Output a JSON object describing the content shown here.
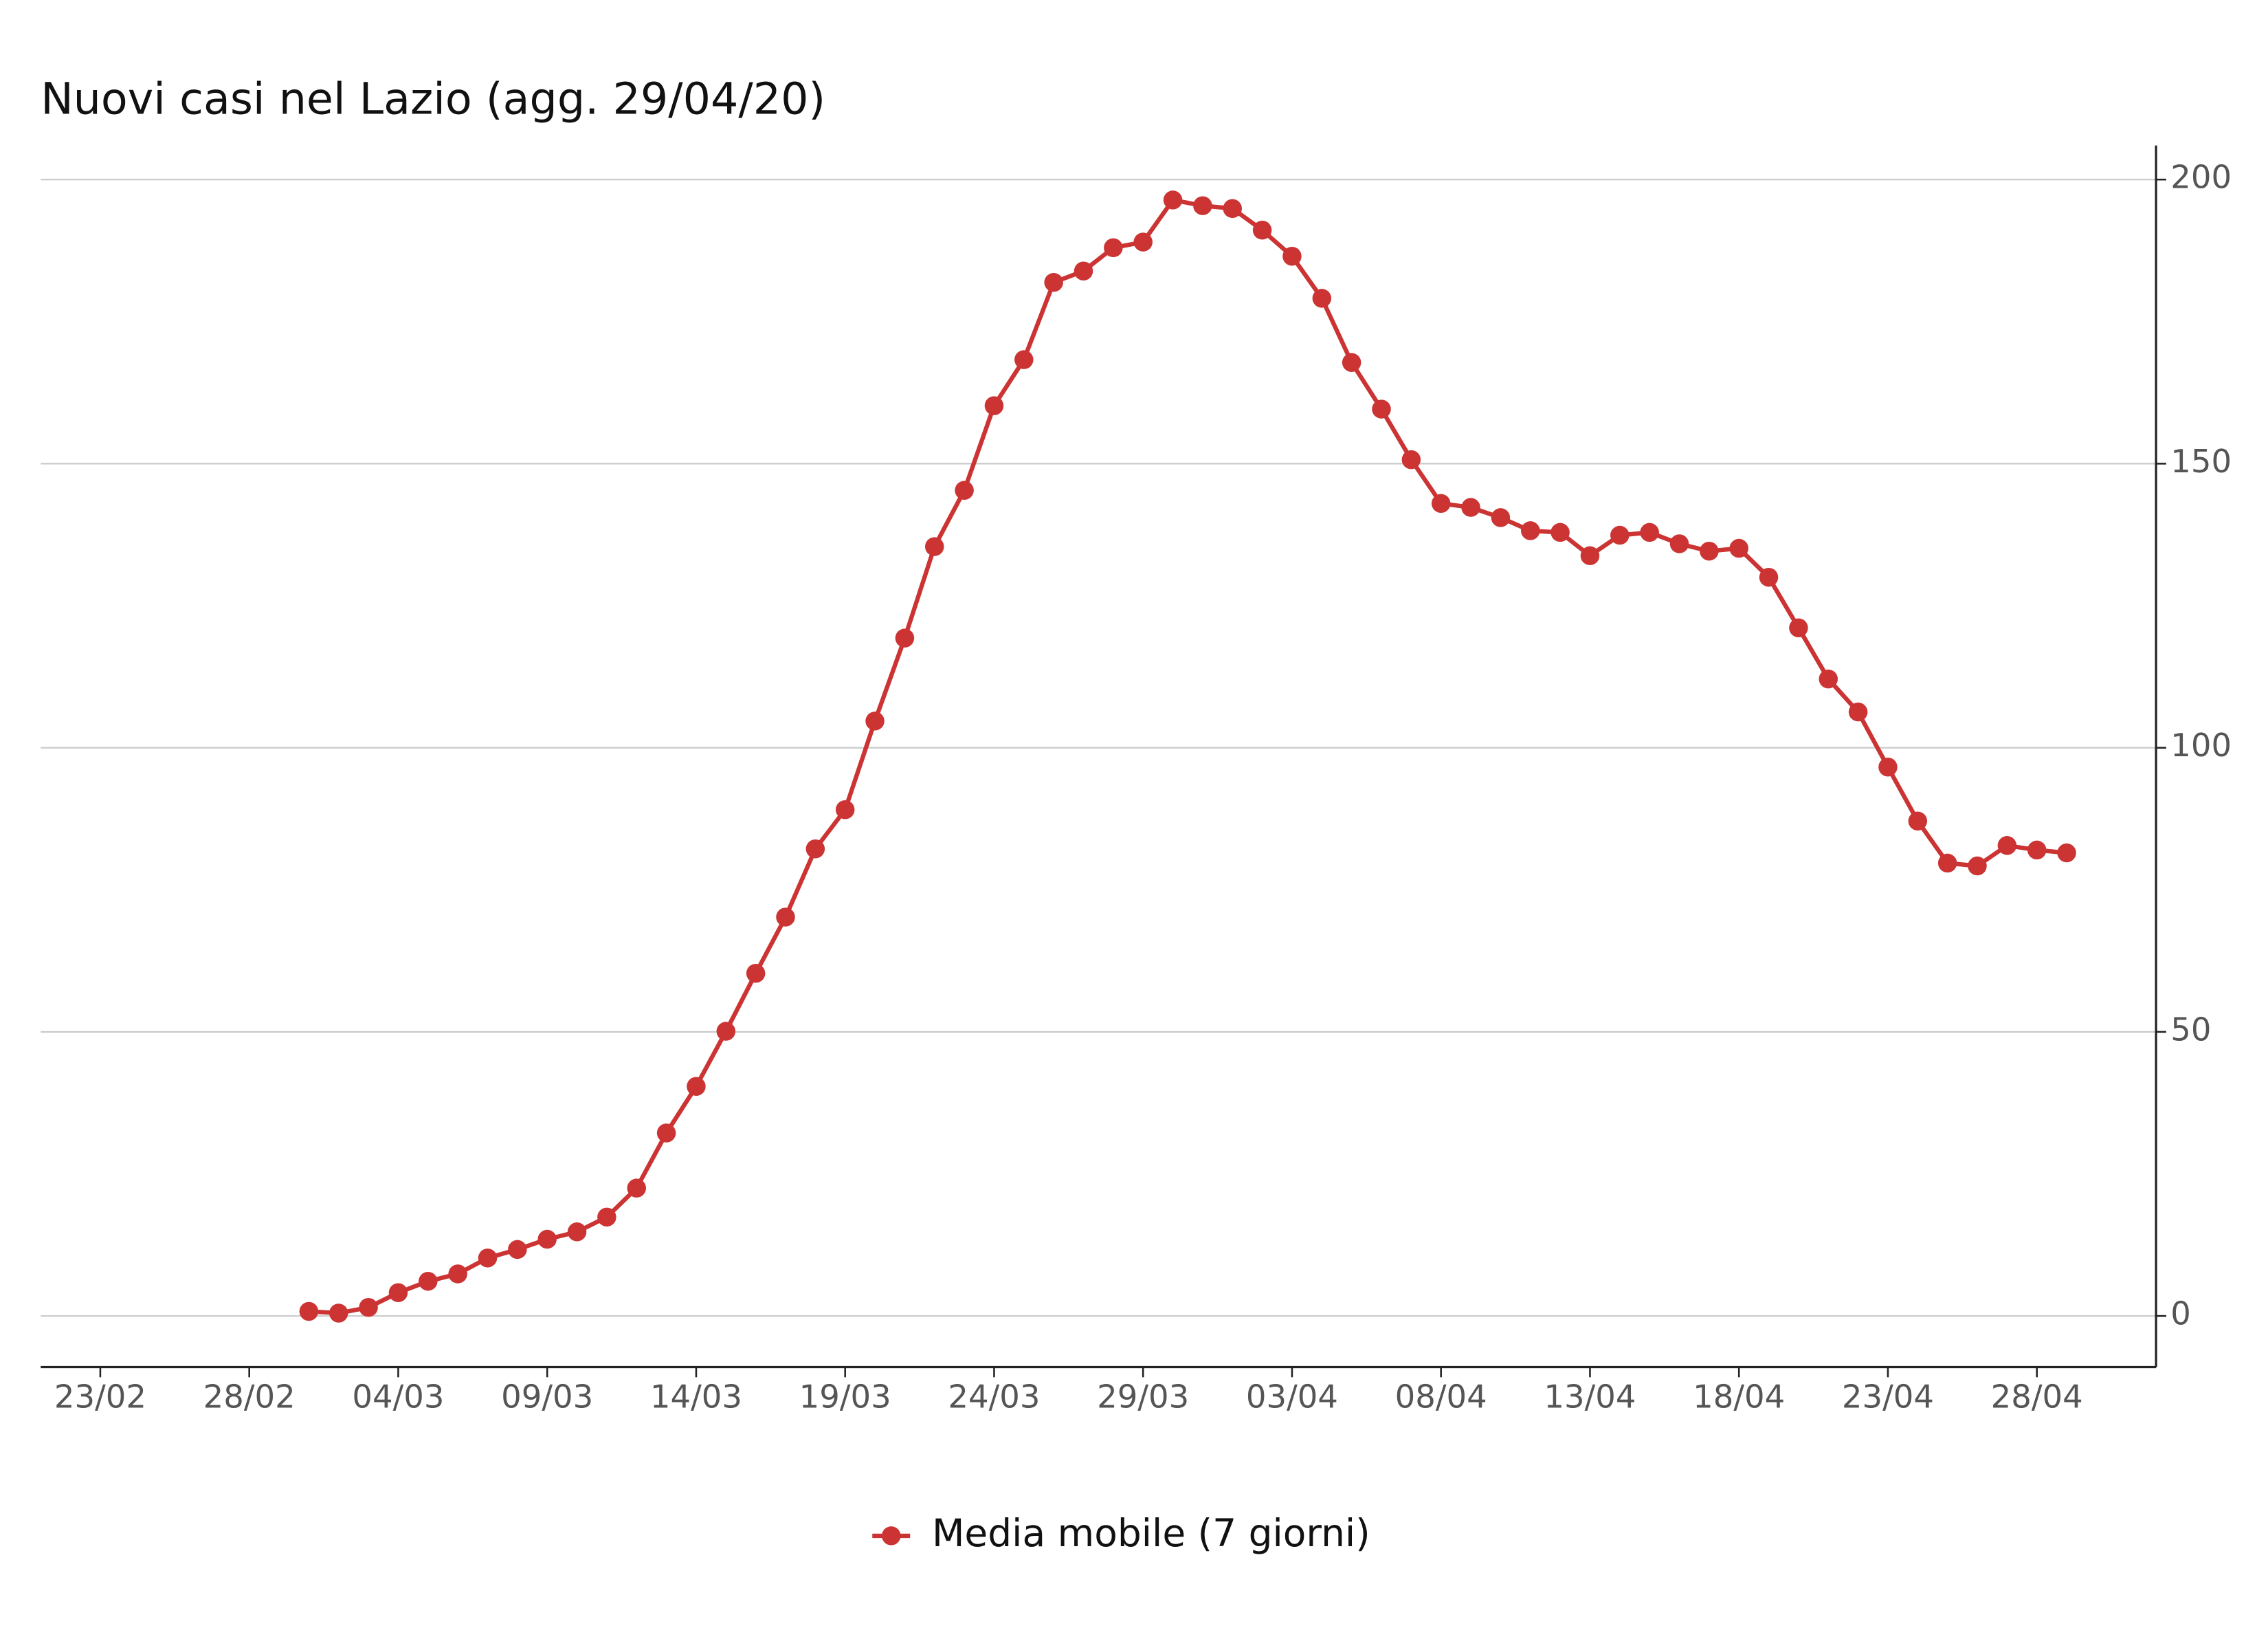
{
  "chart_data": {
    "type": "line",
    "title": "Nuovi casi nel Lazio (agg. 29/04/20)",
    "x": [
      "01/03",
      "02/03",
      "03/03",
      "04/03",
      "05/03",
      "06/03",
      "07/03",
      "08/03",
      "09/03",
      "10/03",
      "11/03",
      "12/03",
      "13/03",
      "14/03",
      "15/03",
      "16/03",
      "17/03",
      "18/03",
      "19/03",
      "20/03",
      "21/03",
      "22/03",
      "23/03",
      "24/03",
      "25/03",
      "26/03",
      "27/03",
      "28/03",
      "29/03",
      "30/03",
      "31/03",
      "01/04",
      "02/04",
      "03/04",
      "04/04",
      "05/04",
      "06/04",
      "07/04",
      "08/04",
      "09/04",
      "10/04",
      "11/04",
      "12/04",
      "13/04",
      "14/04",
      "15/04",
      "16/04",
      "17/04",
      "18/04",
      "19/04",
      "20/04",
      "21/04",
      "22/04",
      "23/04",
      "24/04",
      "25/04",
      "26/04",
      "27/04",
      "28/04",
      "29/04"
    ],
    "series": [
      {
        "name": "Media mobile (7 giorni)",
        "color": "#cc3333",
        "values": [
          0.8,
          0.5,
          1.5,
          4.1,
          6.1,
          7.4,
          10.2,
          11.7,
          13.5,
          14.8,
          17.4,
          22.5,
          32.2,
          40.4,
          50.1,
          60.3,
          70.2,
          82.2,
          89.1,
          104.7,
          119.3,
          135.4,
          145.3,
          160.2,
          168.3,
          181.9,
          183.9,
          188.0,
          189.0,
          196.4,
          195.4,
          194.9,
          191.1,
          186.5,
          179.1,
          167.8,
          159.6,
          150.7,
          143.0,
          142.3,
          140.5,
          138.2,
          137.9,
          133.8,
          137.4,
          137.9,
          135.9,
          134.6,
          135.1,
          130.0,
          121.1,
          112.1,
          106.3,
          96.6,
          87.1,
          79.7,
          79.2,
          82.8,
          82.0,
          81.5
        ]
      }
    ],
    "xlim": [
      "21/02",
      "02/05"
    ],
    "xticks": [
      "23/02",
      "28/02",
      "04/03",
      "09/03",
      "14/03",
      "19/03",
      "24/03",
      "29/03",
      "03/04",
      "08/04",
      "13/04",
      "18/04",
      "23/04",
      "28/04"
    ],
    "ylim": [
      -9,
      206
    ],
    "yticks": [
      0,
      50,
      100,
      150,
      200
    ],
    "grid": true,
    "y_axis_side": "right",
    "legend": "bottom"
  }
}
